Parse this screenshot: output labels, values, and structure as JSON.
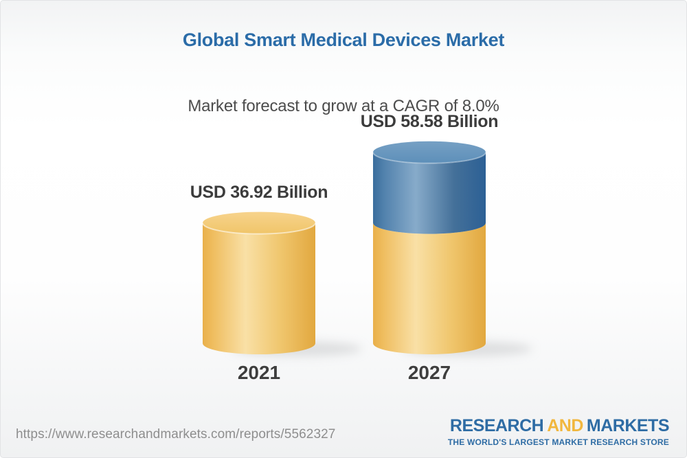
{
  "header": {
    "title": "Global Smart Medical Devices Market",
    "subtitle": "Market forecast to grow at a CAGR of 8.0%"
  },
  "chart_data": {
    "type": "bar",
    "variant": "3d-cylinder",
    "categories": [
      "2021",
      "2027"
    ],
    "values": [
      36.92,
      58.58
    ],
    "value_labels": [
      "USD 36.92 Billion",
      "USD 58.58 Billion"
    ],
    "unit": "USD Billion",
    "cagr": "8.0%",
    "note": "Second cylinder shows the 2021 baseline in yellow with the incremental growth to 2027 stacked in blue on top",
    "legend": "none",
    "grid": "off",
    "colors": {
      "baseline_segment": "#f0c46c",
      "growth_segment": "#6495bd",
      "title_blue": "#2b6ca8",
      "label_gray": "#3c3c3c"
    }
  },
  "footer": {
    "url": "https://www.researchandmarkets.com/reports/5562327",
    "logo": {
      "part_research": "RESEARCH",
      "part_and": "AND",
      "part_markets": "MARKETS",
      "tagline": "THE WORLD'S LARGEST MARKET RESEARCH STORE",
      "blue": "#2e6ca4",
      "yellow": "#f1b73e"
    }
  }
}
